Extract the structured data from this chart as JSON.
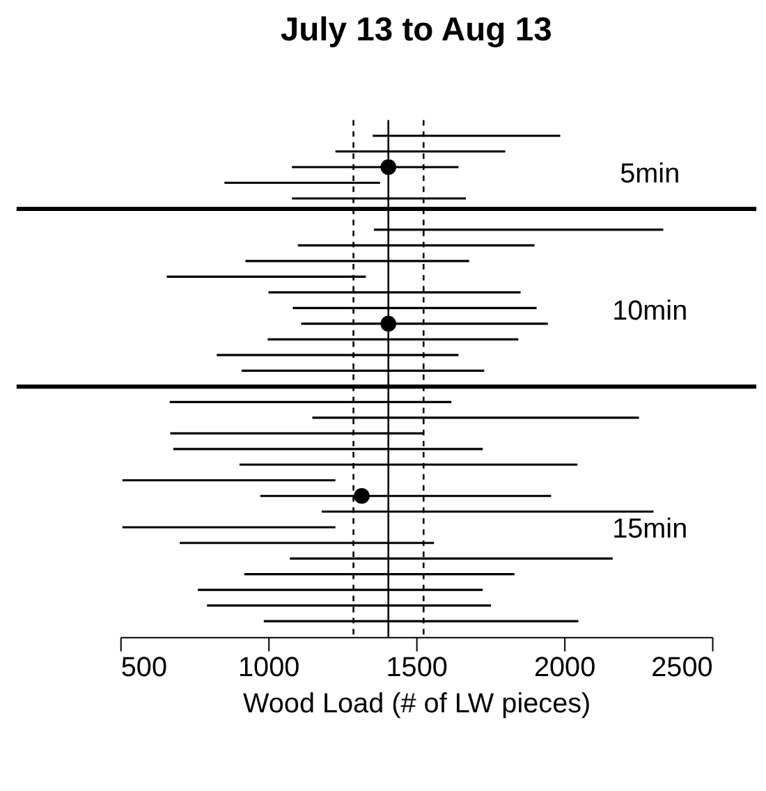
{
  "chart_data": {
    "type": "bar",
    "orientation": "horizontal",
    "title": "July 13 to Aug 13",
    "xlabel": "Wood Load (# of LW pieces)",
    "categories": [
      null,
      null,
      null,
      null,
      null,
      null,
      null,
      null,
      null,
      null,
      null,
      null,
      null,
      null,
      null,
      null,
      null,
      null,
      null,
      null,
      null,
      null,
      null,
      null,
      null,
      null,
      null,
      null,
      null,
      null,
      null,
      null
    ],
    "series": [
      {
        "base": [
          1353,
          1227,
          1080,
          852,
          1080,
          null,
          1357,
          1100,
          923,
          657,
          1001,
          1083,
          1111,
          998,
          826,
          910,
          null,
          667,
          1149,
          669,
          679,
          903,
          507,
          973,
          1181,
          507,
          701,
          1073,
          919,
          762,
          793,
          985
        ],
        "values": [
          634,
          574,
          563,
          526,
          588,
          null,
          978,
          800,
          756,
          673,
          852,
          824,
          834,
          847,
          817,
          820,
          null,
          952,
          1104,
          856,
          1046,
          1142,
          720,
          983,
          1121,
          720,
          859,
          1091,
          913,
          963,
          960,
          1063
        ],
        "color": "#000000"
      },
      {
        "type": "scatter",
        "values": [
          null,
          null,
          1406,
          null,
          null,
          null,
          null,
          null,
          null,
          null,
          null,
          null,
          1406,
          null,
          null,
          null,
          null,
          null,
          null,
          null,
          null,
          null,
          null,
          1316,
          null,
          null,
          null,
          null,
          null,
          null,
          null,
          null
        ],
        "color": "#000000"
      }
    ],
    "marker": "circle",
    "xlim": [
      500,
      2500
    ],
    "xticks": [
      500,
      1000,
      1500,
      2000,
      2500
    ],
    "tick_labels": "x",
    "annotations": [
      "5min",
      "10min",
      "15min"
    ],
    "ref_lines": [
      {
        "axis": "x",
        "value": 1406,
        "line_style": "solid"
      },
      {
        "axis": "x",
        "value": 1288,
        "line_style": "dashed"
      },
      {
        "axis": "x",
        "value": 1525,
        "line_style": "dashed"
      }
    ]
  }
}
